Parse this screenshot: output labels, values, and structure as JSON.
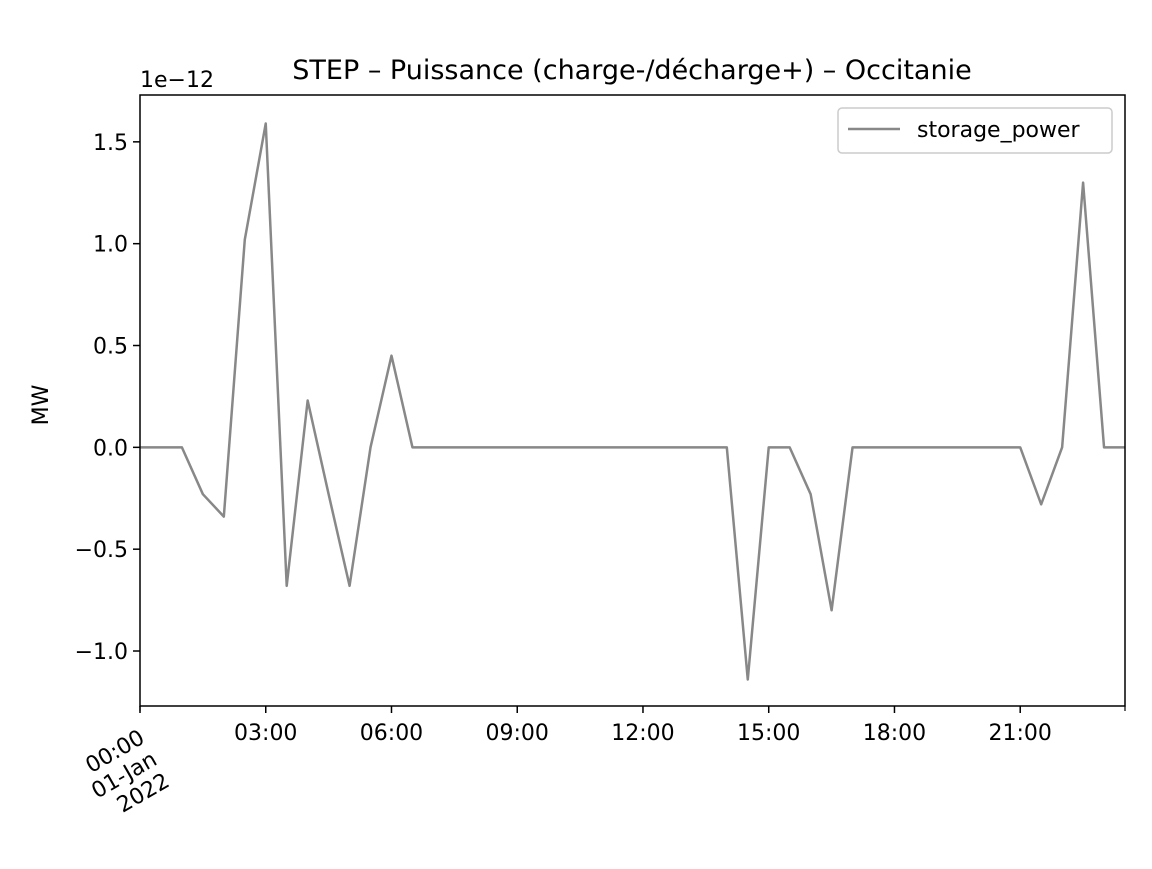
{
  "chart_data": {
    "type": "line",
    "title": "STEP – Puissance (charge-/décharge+) – Occitanie",
    "xlabel": "",
    "ylabel": "MW",
    "y_offset_label": "1e−12",
    "y_multiplier": 1e-12,
    "ylim": [
      -1.27,
      1.73
    ],
    "xlim_hours": [
      0,
      23.5
    ],
    "y_ticks": [
      {
        "value": -1.0,
        "label": "−1.0"
      },
      {
        "value": -0.5,
        "label": "−0.5"
      },
      {
        "value": 0.0,
        "label": "0.0"
      },
      {
        "value": 0.5,
        "label": "0.5"
      },
      {
        "value": 1.0,
        "label": "1.0"
      },
      {
        "value": 1.5,
        "label": "1.5"
      }
    ],
    "x_ticks": [
      {
        "hour": 0,
        "lines": [
          "00:00",
          "01-Jan",
          "2022"
        ],
        "rotated": true
      },
      {
        "hour": 3,
        "lines": [
          "03:00"
        ]
      },
      {
        "hour": 6,
        "lines": [
          "06:00"
        ]
      },
      {
        "hour": 9,
        "lines": [
          "09:00"
        ]
      },
      {
        "hour": 12,
        "lines": [
          "12:00"
        ]
      },
      {
        "hour": 15,
        "lines": [
          "15:00"
        ]
      },
      {
        "hour": 18,
        "lines": [
          "18:00"
        ]
      },
      {
        "hour": 21,
        "lines": [
          "21:00"
        ]
      }
    ],
    "x_minor_tick_hours": [
      0,
      23.5
    ],
    "series": [
      {
        "name": "storage_power",
        "color": "#888888",
        "x": [
          "2022-01-01 00:00",
          "2022-01-01 00:30",
          "2022-01-01 01:00",
          "2022-01-01 01:30",
          "2022-01-01 02:00",
          "2022-01-01 02:30",
          "2022-01-01 03:00",
          "2022-01-01 03:30",
          "2022-01-01 04:00",
          "2022-01-01 04:30",
          "2022-01-01 05:00",
          "2022-01-01 05:30",
          "2022-01-01 06:00",
          "2022-01-01 06:30",
          "2022-01-01 07:00",
          "2022-01-01 07:30",
          "2022-01-01 08:00",
          "2022-01-01 08:30",
          "2022-01-01 09:00",
          "2022-01-01 09:30",
          "2022-01-01 10:00",
          "2022-01-01 10:30",
          "2022-01-01 11:00",
          "2022-01-01 11:30",
          "2022-01-01 12:00",
          "2022-01-01 12:30",
          "2022-01-01 13:00",
          "2022-01-01 13:30",
          "2022-01-01 14:00",
          "2022-01-01 14:30",
          "2022-01-01 15:00",
          "2022-01-01 15:30",
          "2022-01-01 16:00",
          "2022-01-01 16:30",
          "2022-01-01 17:00",
          "2022-01-01 17:30",
          "2022-01-01 18:00",
          "2022-01-01 18:30",
          "2022-01-01 19:00",
          "2022-01-01 19:30",
          "2022-01-01 20:00",
          "2022-01-01 20:30",
          "2022-01-01 21:00",
          "2022-01-01 21:30",
          "2022-01-01 22:00",
          "2022-01-01 22:30",
          "2022-01-01 23:00",
          "2022-01-01 23:30"
        ],
        "values": [
          0,
          0,
          0,
          -0.23,
          -0.34,
          1.02,
          1.59,
          -0.68,
          0.23,
          -0.23,
          -0.68,
          0,
          0.45,
          0,
          0,
          0,
          0,
          0,
          0,
          0,
          0,
          0,
          0,
          0,
          0,
          0,
          0,
          0,
          0,
          -1.14,
          0,
          0,
          -0.23,
          -0.8,
          0,
          0,
          0,
          0,
          0,
          0,
          0,
          0,
          0,
          -0.28,
          0,
          1.3,
          0,
          0
        ]
      }
    ],
    "legend": {
      "position": "top-right",
      "entries": [
        "storage_power"
      ]
    },
    "grid": false
  }
}
